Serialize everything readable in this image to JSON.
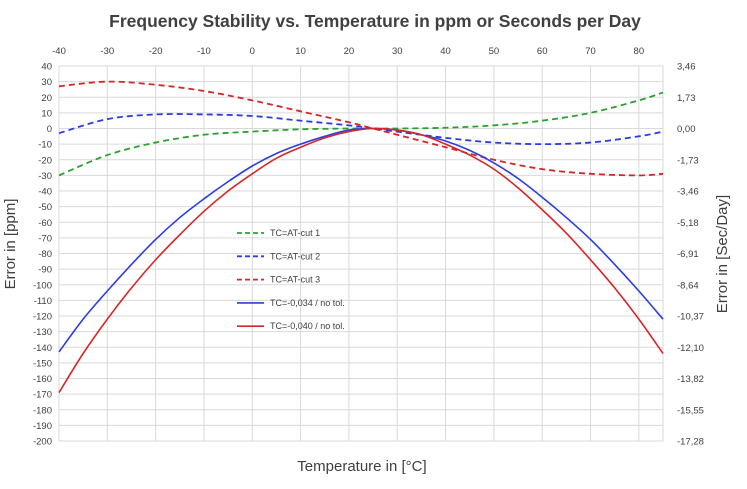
{
  "chart_data": {
    "type": "line",
    "title": "Frequency Stability vs. Temperature in ppm or Seconds per Day",
    "xlabel": "Temperature in [°C]",
    "ylabel": "Error in [ppm]",
    "y2label": "Error in [Sec/Day]",
    "xlim": [
      -40,
      85
    ],
    "ylim": [
      -200,
      40
    ],
    "x_ticks": [
      -40,
      -30,
      -20,
      -10,
      0,
      10,
      20,
      30,
      40,
      50,
      60,
      70,
      80
    ],
    "y_ticks": [
      40,
      30,
      20,
      10,
      0,
      -10,
      -20,
      -30,
      -40,
      -50,
      -60,
      -70,
      -80,
      -90,
      -100,
      -110,
      -120,
      -130,
      -140,
      -150,
      -160,
      -170,
      -180,
      -190,
      -200
    ],
    "y2_ticks": [
      {
        "value": 40,
        "label": "3,46"
      },
      {
        "value": 20,
        "label": "1,73"
      },
      {
        "value": 0,
        "label": "0,00"
      },
      {
        "value": -20,
        "label": "-1,73"
      },
      {
        "value": -40,
        "label": "-3,46"
      },
      {
        "value": -60,
        "label": "-5,18"
      },
      {
        "value": -80,
        "label": "-6,91"
      },
      {
        "value": -100,
        "label": "-8,64"
      },
      {
        "value": -120,
        "label": "-10,37"
      },
      {
        "value": -140,
        "label": "-12,10"
      },
      {
        "value": -160,
        "label": "-13,82"
      },
      {
        "value": -180,
        "label": "-15,55"
      },
      {
        "value": -200,
        "label": "-17,28"
      }
    ],
    "grid": true,
    "legend_position": "center-left",
    "series": [
      {
        "name": "TC=AT-cut 1",
        "color": "#2ca02c",
        "dash": true,
        "x": [
          -40,
          -30,
          -20,
          -10,
          0,
          10,
          20,
          25,
          30,
          40,
          50,
          60,
          70,
          80,
          85
        ],
        "y": [
          -30,
          -17,
          -9,
          -4,
          -2,
          -0.5,
          0,
          0,
          0,
          0.5,
          2,
          5,
          10,
          18,
          23
        ]
      },
      {
        "name": "TC=AT-cut 2",
        "color": "#2a3de0",
        "dash": true,
        "x": [
          -40,
          -30,
          -20,
          -10,
          0,
          10,
          20,
          25,
          30,
          40,
          50,
          60,
          70,
          80,
          85
        ],
        "y": [
          -3,
          6,
          9,
          9,
          8,
          5,
          2,
          0,
          -2,
          -6,
          -9,
          -10,
          -9,
          -5,
          -2
        ]
      },
      {
        "name": "TC=AT-cut 3",
        "color": "#d62728",
        "dash": true,
        "x": [
          -40,
          -30,
          -20,
          -10,
          0,
          10,
          20,
          25,
          30,
          40,
          50,
          60,
          70,
          80,
          85
        ],
        "y": [
          27,
          30,
          28,
          24,
          18,
          11,
          4,
          0,
          -4,
          -12,
          -20,
          -26,
          -29,
          -30,
          -29
        ]
      },
      {
        "name": "TC=-0,034 / no tol.",
        "color": "#2a3de0",
        "dash": false,
        "x": [
          -40,
          -35,
          -30,
          -25,
          -20,
          -15,
          -10,
          -5,
          0,
          5,
          10,
          15,
          20,
          25,
          30,
          35,
          40,
          45,
          50,
          55,
          60,
          65,
          70,
          75,
          80,
          85
        ],
        "y": [
          -143,
          -122,
          -104,
          -87,
          -71,
          -57,
          -45,
          -34,
          -24,
          -16,
          -10,
          -5,
          -1,
          0,
          -1,
          -4,
          -8,
          -14,
          -22,
          -32,
          -44,
          -57,
          -71,
          -87,
          -104,
          -122
        ]
      },
      {
        "name": "TC=-0,040 / no tol.",
        "color": "#d62728",
        "dash": false,
        "x": [
          -40,
          -35,
          -30,
          -25,
          -20,
          -15,
          -10,
          -5,
          0,
          5,
          10,
          15,
          20,
          25,
          30,
          35,
          40,
          45,
          50,
          55,
          60,
          65,
          70,
          75,
          80,
          85
        ],
        "y": [
          -169,
          -144,
          -122,
          -102,
          -84,
          -68,
          -53,
          -40,
          -29,
          -19,
          -12,
          -6,
          -2,
          0,
          -1,
          -4,
          -10,
          -17,
          -26,
          -38,
          -52,
          -67,
          -84,
          -102,
          -122,
          -144
        ]
      }
    ]
  }
}
